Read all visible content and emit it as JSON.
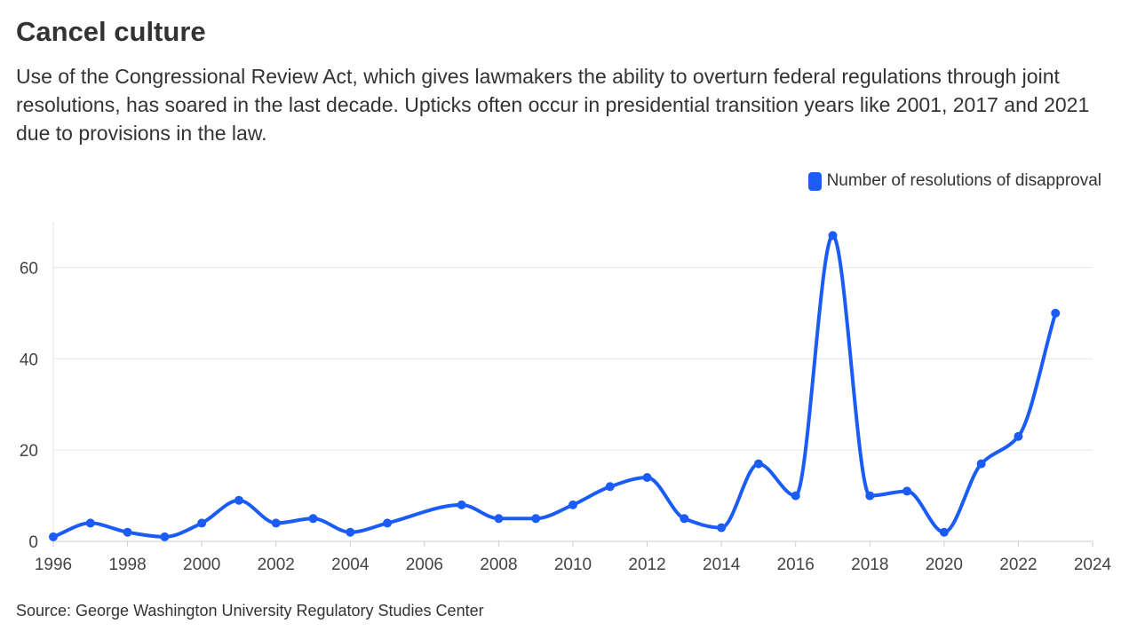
{
  "header": {
    "title": "Cancel culture",
    "subtitle": "Use of the Congressional Review Act, which gives lawmakers the ability to overturn federal regulations through joint resolutions, has soared in the last decade. Upticks often occur in presidential transition years like 2001, 2017 and 2021 due to provisions in the law."
  },
  "footer": {
    "source": "Source: George Washington University Regulatory Studies Center"
  },
  "colors": {
    "series": "#1a5cf5",
    "grid": "#e6e6e6",
    "axis": "#cccccc"
  },
  "chart_data": {
    "type": "line",
    "title": "Cancel culture",
    "xlabel": "",
    "ylabel": "",
    "xlim": [
      1996,
      2024
    ],
    "ylim": [
      0,
      70
    ],
    "x_ticks": [
      "1996",
      "1998",
      "2000",
      "2002",
      "2004",
      "2006",
      "2008",
      "2010",
      "2012",
      "2014",
      "2016",
      "2018",
      "2020",
      "2022",
      "2024"
    ],
    "y_ticks": [
      "0",
      "20",
      "40",
      "60"
    ],
    "legend_position": "top-right",
    "grid": true,
    "series": [
      {
        "name": "Number of resolutions of disapproval",
        "x": [
          1996,
          1997,
          1998,
          1999,
          2000,
          2001,
          2002,
          2003,
          2004,
          2005,
          2006,
          2007,
          2008,
          2009,
          2010,
          2011,
          2012,
          2013,
          2014,
          2015,
          2016,
          2017,
          2018,
          2019,
          2020,
          2021,
          2022,
          2023
        ],
        "values": [
          1,
          4,
          2,
          1,
          4,
          9,
          4,
          5,
          2,
          4,
          null,
          8,
          5,
          5,
          8,
          12,
          14,
          5,
          3,
          17,
          10,
          67,
          10,
          11,
          2,
          17,
          23,
          50
        ]
      }
    ]
  }
}
